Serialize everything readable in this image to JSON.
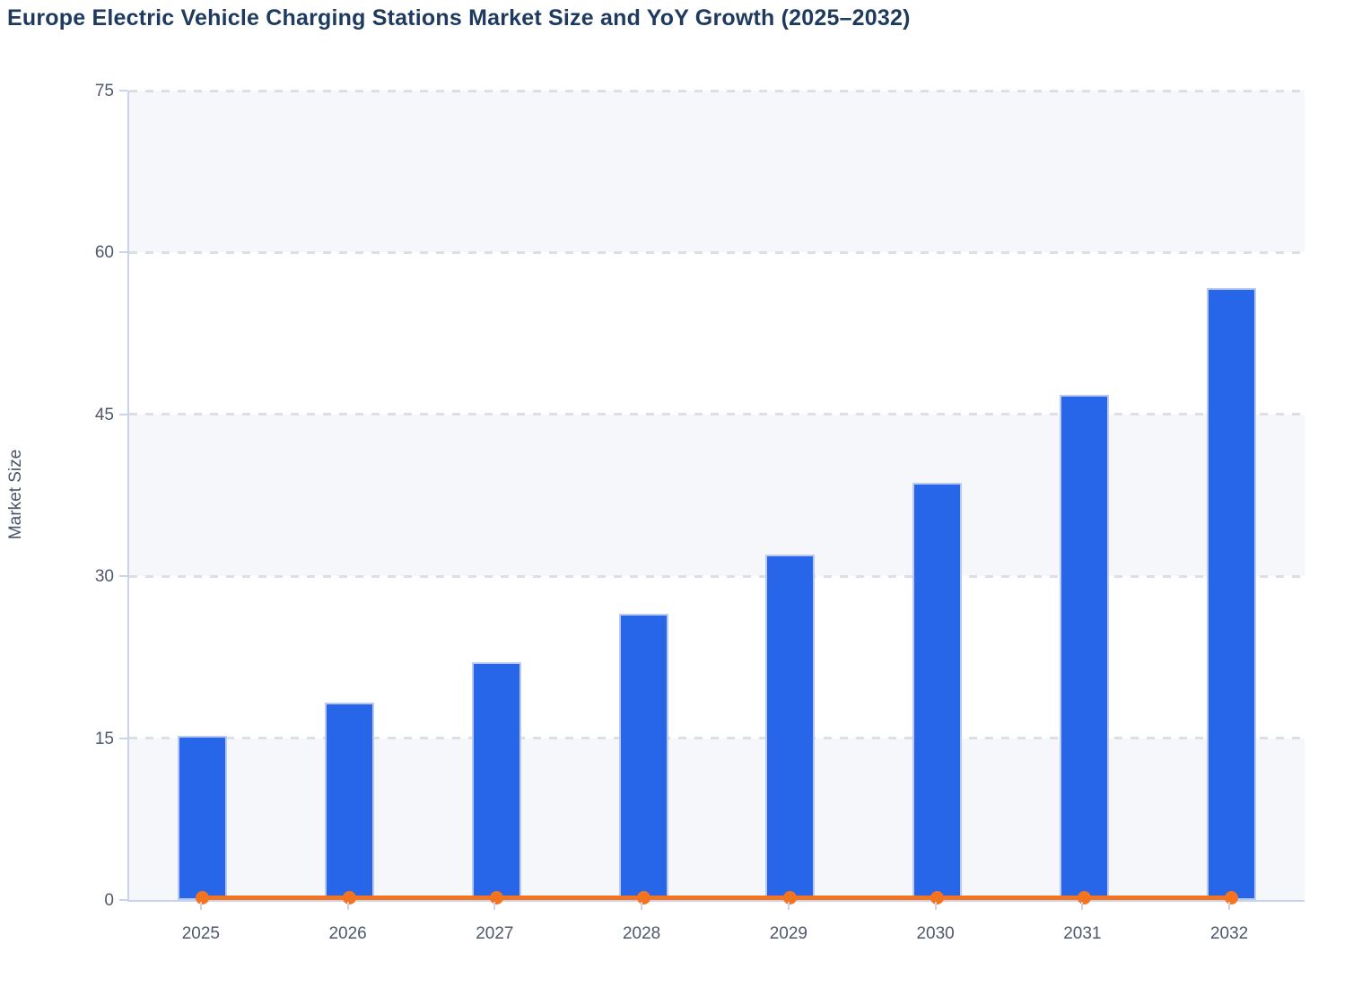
{
  "title": "Europe Electric Vehicle Charging Stations Market Size and YoY Growth (2025–2032)",
  "colors": {
    "bar_fill": "#2766e8",
    "bar_stroke": "#b9c9f1",
    "line_orange": "#f4731f",
    "band_gray": "#f5f7fa",
    "gridline": "#dcdfe4",
    "axis_line": "#c9d3ee",
    "tick_label": "#4f586a",
    "title_text": "#1e3a5f"
  },
  "chart_data": {
    "type": "bar",
    "title": "Europe Electric Vehicle Charging Stations Market Size and YoY Growth (2025–2032)",
    "xlabel": "",
    "ylabel": "Market Size",
    "categories": [
      "2025",
      "2026",
      "2027",
      "2028",
      "2029",
      "2030",
      "2031",
      "2032"
    ],
    "series": [
      {
        "name": "Market Size",
        "type": "bar",
        "values": [
          15.2,
          18.3,
          22.0,
          26.5,
          32.0,
          38.7,
          46.8,
          56.7
        ]
      },
      {
        "name": "YoY Growth",
        "type": "line",
        "values": [
          0.2,
          0.2,
          0.2,
          0.2,
          0.2,
          0.2,
          0.2,
          0.2
        ],
        "note": "flat orange line with round markers rendered just above the zero baseline"
      }
    ],
    "ylim": [
      0,
      75
    ],
    "yticks": [
      0,
      15,
      30,
      45,
      60,
      75
    ],
    "grid": true,
    "grid_style": "dashed horizontal",
    "band_fill": "alternating 15-unit horizontal bands (0–15, 30–45, 60–75 shaded)",
    "legend": "none"
  }
}
